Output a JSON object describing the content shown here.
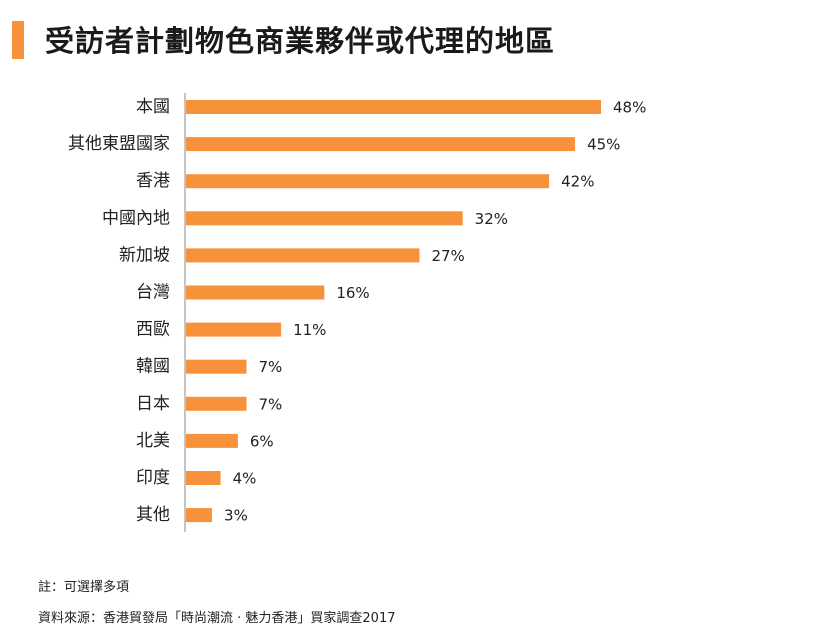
{
  "title": "受訪者計劃物色商業夥伴或代理的地區",
  "colors": {
    "accent": "#f7923a",
    "axis": "#888888",
    "text": "#222222"
  },
  "chart_data": {
    "type": "bar",
    "orientation": "horizontal",
    "title": "受訪者計劃物色商業夥伴或代理的地區",
    "categories": [
      "本國",
      "其他東盟國家",
      "香港",
      "中國內地",
      "新加坡",
      "台灣",
      "西歐",
      "韓國",
      "日本",
      "北美",
      "印度",
      "其他"
    ],
    "values": [
      48,
      45,
      42,
      32,
      27,
      16,
      11,
      7,
      7,
      6,
      4,
      3
    ],
    "value_labels": [
      "48%",
      "45%",
      "42%",
      "32%",
      "27%",
      "16%",
      "11%",
      "7%",
      "7%",
      "6%",
      "4%",
      "3%"
    ],
    "unit": "%",
    "xlim": [
      0,
      48
    ],
    "grid": false,
    "legend": "none",
    "bar_color": "#f7923a"
  },
  "footer": {
    "note": "註：可選擇多項",
    "source": "資料來源：香港貿發局「時尚潮流 · 魅力香港」買家調查2017"
  }
}
